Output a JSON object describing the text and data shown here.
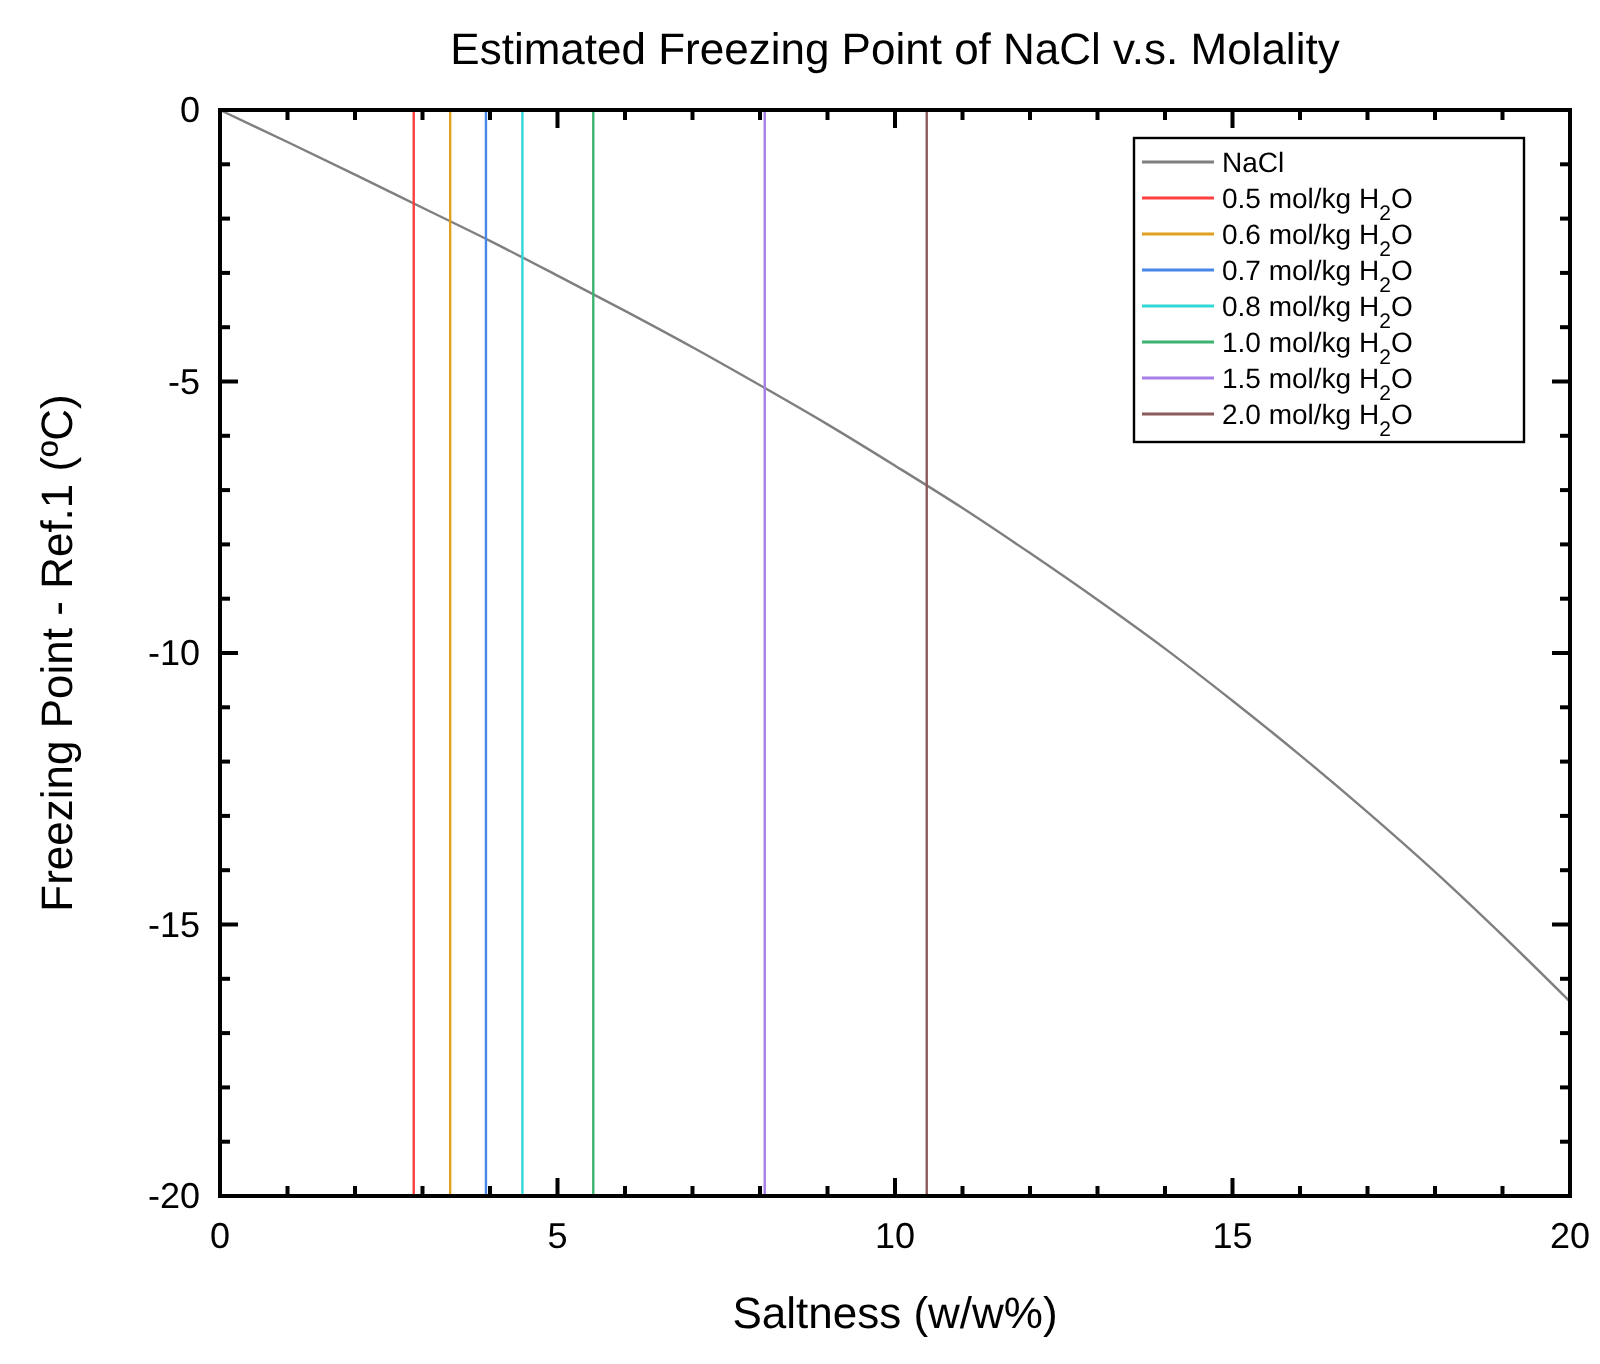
{
  "chart_data": {
    "type": "line",
    "title": "Estimated Freezing Point of NaCl v.s. Molality",
    "xlabel": "Saltness (w/w%)",
    "ylabel": "Freezing Point - Ref.1 (ºC)",
    "xlim": [
      0,
      20
    ],
    "ylim": [
      -20,
      0
    ],
    "xticks": [
      0,
      {
        "value": 1,
        "label": null
      },
      {
        "value": 2,
        "label": null
      },
      {
        "value": 3,
        "label": null
      },
      {
        "value": 4,
        "label": null
      },
      5,
      {
        "value": 6,
        "label": null
      },
      {
        "value": 7,
        "label": null
      },
      {
        "value": 8,
        "label": null
      },
      {
        "value": 9,
        "label": null
      },
      10,
      {
        "value": 11,
        "label": null
      },
      {
        "value": 12,
        "label": null
      },
      {
        "value": 13,
        "label": null
      },
      {
        "value": 14,
        "label": null
      },
      15,
      {
        "value": 16,
        "label": null
      },
      {
        "value": 17,
        "label": null
      },
      {
        "value": 18,
        "label": null
      },
      {
        "value": 19,
        "label": null
      },
      20
    ],
    "yticks": [
      -20,
      {
        "value": -19,
        "label": null
      },
      {
        "value": -18,
        "label": null
      },
      {
        "value": -17,
        "label": null
      },
      {
        "value": -16,
        "label": null
      },
      -15,
      {
        "value": -14,
        "label": null
      },
      {
        "value": -13,
        "label": null
      },
      {
        "value": -12,
        "label": null
      },
      {
        "value": -11,
        "label": null
      },
      -10,
      {
        "value": -9,
        "label": null
      },
      {
        "value": -8,
        "label": null
      },
      {
        "value": -7,
        "label": null
      },
      {
        "value": -6,
        "label": null
      },
      -5,
      {
        "value": -4,
        "label": null
      },
      {
        "value": -3,
        "label": null
      },
      {
        "value": -2,
        "label": null
      },
      {
        "value": -1,
        "label": null
      },
      0
    ],
    "grid": false,
    "legend": "top right",
    "line_style": "solid",
    "series": [
      {
        "name": "NaCl",
        "color": "#7f7f7f",
        "x": [
          0,
          1,
          2,
          3,
          4,
          5,
          6,
          7,
          8,
          9,
          10,
          11,
          12,
          13,
          14,
          15,
          16,
          17,
          18,
          19,
          20
        ],
        "values": [
          0,
          -0.59,
          -1.19,
          -1.8,
          -2.41,
          -3.05,
          -3.7,
          -4.37,
          -5.07,
          -5.79,
          -6.55,
          -7.33,
          -8.16,
          -9.02,
          -9.92,
          -10.88,
          -11.88,
          -12.93,
          -14.03,
          -15.2,
          -16.42
        ]
      },
      {
        "name": "0.5 mol/kg H$_{2}$O",
        "color": "#ff4040",
        "x": [
          2.87,
          2.87
        ],
        "values": [
          -20,
          0
        ]
      },
      {
        "name": "0.6 mol/kg H$_{2}$O",
        "color": "#e0a020",
        "x": [
          3.41,
          3.41
        ],
        "values": [
          -20,
          0
        ]
      },
      {
        "name": "0.7 mol/kg H$_{2}$O",
        "color": "#4a86e8",
        "x": [
          3.94,
          3.94
        ],
        "values": [
          -20,
          0
        ]
      },
      {
        "name": "0.8 mol/kg H$_{2}$O",
        "color": "#30d8d8",
        "x": [
          4.48,
          4.48
        ],
        "values": [
          -20,
          0
        ]
      },
      {
        "name": "1.0 mol/kg H$_{2}$O",
        "color": "#3cb371",
        "x": [
          5.53,
          5.53
        ],
        "values": [
          -20,
          0
        ]
      },
      {
        "name": "1.5 mol/kg H$_{2}$O",
        "color": "#a57ee8",
        "x": [
          8.07,
          8.07
        ],
        "values": [
          -20,
          0
        ]
      },
      {
        "name": "2.0 mol/kg H$_{2}$O",
        "color": "#8b5a5a",
        "x": [
          10.47,
          10.47
        ],
        "values": [
          -20,
          0
        ]
      }
    ]
  }
}
